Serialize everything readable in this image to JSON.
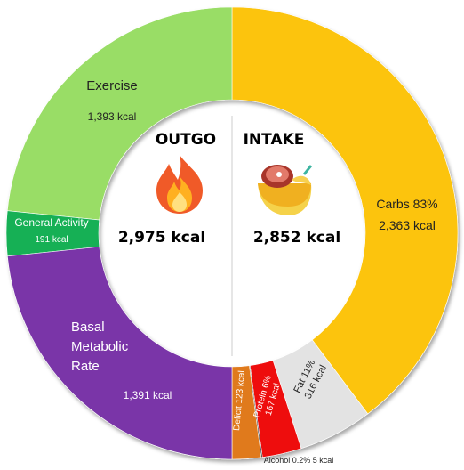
{
  "chart_data": {
    "type": "pie",
    "variant": "donut",
    "outgo": {
      "title": "OUTGO",
      "total": "2,975 kcal",
      "icon": "fire-icon",
      "slices": [
        {
          "name": "Exercise",
          "label": "Exercise",
          "value_label": "1,393 kcal",
          "kcal": 1393,
          "color": "#99dd66"
        },
        {
          "name": "General Activity",
          "label": "General Activity",
          "value_label": "191 kcal",
          "kcal": 191,
          "color": "#13b055"
        },
        {
          "name": "Basal Metabolic Rate",
          "label": "Basal Metabolic Rate",
          "value_label": "1,391 kcal",
          "kcal": 1391,
          "color": "#7a36a8"
        }
      ]
    },
    "intake": {
      "title": "INTAKE",
      "total": "2,852 kcal",
      "icon": "food-plate-icon",
      "slices": [
        {
          "name": "Carbs",
          "label": "Carbs 83%",
          "value_label": "2,363 kcal",
          "kcal": 2363,
          "color": "#fcc40a"
        },
        {
          "name": "Fat",
          "label": "Fat 11%",
          "value_label": "316 kcal",
          "kcal": 316,
          "color": "#e3e3e3"
        },
        {
          "name": "Protein",
          "label": "Protein 6%",
          "value_label": "167 kcal",
          "kcal": 167,
          "color": "#ee1111"
        },
        {
          "name": "Alcohol",
          "label": "Alcohol 0.2% 5 kcal",
          "kcal": 5,
          "color": "#111111"
        },
        {
          "name": "Deficit",
          "label": "Deficit 123 kcal",
          "kcal": 123,
          "color": "#e07a1c"
        }
      ]
    }
  }
}
